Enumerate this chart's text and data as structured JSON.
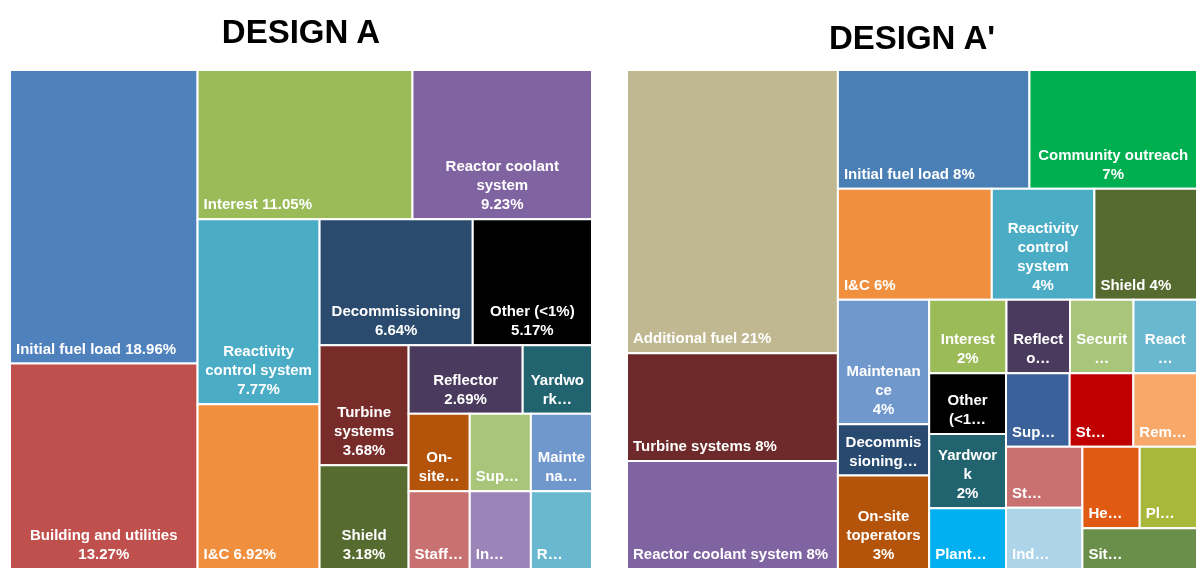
{
  "chart_data": [
    {
      "type": "other",
      "title": "DESIGN A",
      "categories": [
        "Initial fuel load",
        "Building and utilities",
        "Interest",
        "Reactor coolant system",
        "Reactivity control system",
        "I&C",
        "Decommissioning",
        "Other (<1%)",
        "Turbine systems",
        "Shield",
        "Reflector",
        "Yardwork…",
        "On-site…",
        "Staff…",
        "Sup…",
        "Maintena…",
        "In…",
        "R…"
      ],
      "values": [
        18.96,
        13.27,
        11.05,
        9.23,
        7.77,
        6.92,
        6.64,
        5.17,
        3.68,
        3.18,
        2.69,
        null,
        null,
        null,
        null,
        null,
        null,
        null
      ],
      "value_labels": [
        "18.96%",
        "13.27%",
        "11.05%",
        "9.23%",
        "7.77%",
        "6.92%",
        "6.64%",
        "5.17%",
        "3.68%",
        "3.18%",
        "2.69%",
        null,
        null,
        null,
        null,
        null,
        null,
        null
      ],
      "colors": [
        "#4f81bd",
        "#c0504d",
        "#9bbb59",
        "#8064a2",
        "#4bacc6",
        "#f0903f",
        "#2a4a6e",
        "#000000",
        "#772c2a",
        "#556b2f",
        "#4a3a5e",
        "#21636f",
        "#b4540a",
        "#c97070",
        "#a8c57a",
        "#7098cc",
        "#9a84b8",
        "#6ab7d0"
      ]
    },
    {
      "type": "other",
      "title": "DESIGN A'",
      "categories": [
        "Additional fuel",
        "Turbine systems",
        "Reactor coolant system",
        "Initial fuel load",
        "Community outreach",
        "I&C",
        "Reactivity control system",
        "Shield",
        "Maintenance",
        "Decommissioning…",
        "On-site toperators",
        "Interest",
        "Reflecto…",
        "Securit…",
        "React…",
        "Other (<1…",
        "Yardwork",
        "Plant…",
        "Sup…",
        "St…",
        "Rem…",
        "St…",
        "Ind…",
        "He…",
        "Pl…",
        "Sit…"
      ],
      "values": [
        21,
        8,
        8,
        8,
        7,
        6,
        4,
        4,
        4,
        null,
        3,
        2,
        null,
        null,
        null,
        null,
        2,
        null,
        null,
        null,
        null,
        null,
        null,
        null,
        null,
        null
      ],
      "value_labels": [
        "21%",
        "8%",
        "8%",
        "8%",
        "7%",
        "6%",
        "4%",
        "4%",
        "4%",
        null,
        "3%",
        "2%",
        null,
        null,
        null,
        null,
        "2%",
        null,
        null,
        null,
        null,
        null,
        null,
        null,
        null,
        null
      ],
      "colors": [
        "#c0b890",
        "#6e2a2a",
        "#8064a2",
        "#4a7fb5",
        "#00b050",
        "#f0903f",
        "#4bacc6",
        "#556b2f",
        "#7098cc",
        "#284a70",
        "#b4540a",
        "#9bbb59",
        "#4a3a5e",
        "#a8c57a",
        "#6ab7d0",
        "#000000",
        "#21636f",
        "#00b0f0",
        "#3a6199",
        "#c00000",
        "#f8a868",
        "#c97070",
        "#add4e8",
        "#e15a14",
        "#a8b83a",
        "#6a8f4a"
      ]
    }
  ]
}
